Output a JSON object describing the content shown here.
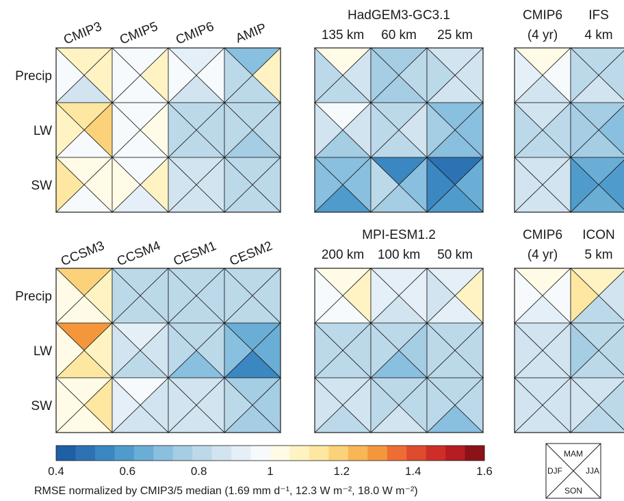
{
  "colorbar": {
    "min": 0.4,
    "max": 1.6,
    "ticks": [
      "0.4",
      "0.6",
      "0.8",
      "1",
      "1.2",
      "1.4",
      "1.6"
    ],
    "colors": [
      "#1f5fa3",
      "#2d73b3",
      "#3b87c1",
      "#4f9bcc",
      "#6aaed6",
      "#89bfdf",
      "#a5cde4",
      "#bcd9ea",
      "#d1e4f0",
      "#e4eff7",
      "#f6fafd",
      "#fffbe6",
      "#fff3c4",
      "#fde7a1",
      "#fbd27a",
      "#f8b656",
      "#f4973c",
      "#ec6e34",
      "#df4b2e",
      "#ce2e27",
      "#b51d22",
      "#8b1218"
    ],
    "caption": "RMSE normalized by CMIP3/5 median (1.69 mm d⁻¹, 12.3 W m⁻², 18.0 W m⁻²)"
  },
  "row_labels": [
    "Precip",
    "LW",
    "SW"
  ],
  "season_key": {
    "top": "MAM",
    "left": "DJF",
    "right": "JJA",
    "bottom": "SON"
  },
  "chart_data": [
    {
      "type": "heatmap",
      "columns": [
        "CMIP3",
        "CMIP5",
        "CMIP6",
        "AMIP"
      ],
      "rows": [
        "Precip",
        "LW",
        "SW"
      ],
      "season_order": [
        "MAM",
        "JJA",
        "SON",
        "DJF"
      ],
      "values": [
        [
          [
            1.08,
            1.1,
            0.85,
            0.98
          ],
          [
            0.97,
            1.1,
            0.95,
            1.0
          ],
          [
            0.9,
            0.95,
            0.88,
            0.95
          ],
          [
            0.72,
            1.1,
            0.8,
            0.82
          ]
        ],
        [
          [
            1.15,
            1.2,
            1.0,
            1.06
          ],
          [
            0.98,
            1.04,
            0.97,
            0.96
          ],
          [
            0.82,
            0.82,
            0.8,
            0.82
          ],
          [
            0.79,
            0.8,
            0.78,
            0.8
          ]
        ],
        [
          [
            1.05,
            1.03,
            0.98,
            1.12
          ],
          [
            0.96,
            1.1,
            0.92,
            1.05
          ],
          [
            0.86,
            0.86,
            0.88,
            0.86
          ],
          [
            0.82,
            0.82,
            0.82,
            0.82
          ]
        ]
      ]
    },
    {
      "type": "heatmap",
      "title": "HadGEM3-GC3.1",
      "columns": [
        "135 km",
        "60 km",
        "25 km"
      ],
      "rows": [
        "Precip",
        "LW",
        "SW"
      ],
      "season_order": [
        "MAM",
        "JJA",
        "SON",
        "DJF"
      ],
      "values": [
        [
          [
            1.05,
            0.85,
            0.8,
            0.82
          ],
          [
            0.78,
            0.82,
            0.78,
            0.76
          ],
          [
            0.85,
            0.88,
            0.84,
            0.8
          ]
        ],
        [
          [
            0.95,
            0.85,
            0.74,
            0.88
          ],
          [
            0.8,
            0.84,
            0.8,
            0.82
          ],
          [
            0.7,
            0.7,
            0.72,
            0.74
          ]
        ],
        [
          [
            0.7,
            0.68,
            0.58,
            0.7
          ],
          [
            0.52,
            0.68,
            0.74,
            0.8
          ],
          [
            0.46,
            0.66,
            0.58,
            0.56
          ]
        ]
      ]
    },
    {
      "type": "heatmap",
      "title": "MPI-ESM1.2",
      "columns": [
        "200 km",
        "100 km",
        "50 km"
      ],
      "rows": [
        "Precip",
        "LW",
        "SW"
      ],
      "season_order": [
        "MAM",
        "JJA",
        "SON",
        "DJF"
      ],
      "values": [
        [
          [
            1.05,
            1.1,
            0.95,
            0.98
          ],
          [
            0.92,
            0.9,
            0.84,
            0.94
          ],
          [
            0.9,
            1.08,
            0.92,
            0.88
          ]
        ],
        [
          [
            0.82,
            0.8,
            0.8,
            0.82
          ],
          [
            0.8,
            0.78,
            0.72,
            0.8
          ],
          [
            0.8,
            0.82,
            0.8,
            0.82
          ]
        ],
        [
          [
            0.84,
            0.86,
            0.82,
            0.84
          ],
          [
            0.82,
            0.8,
            0.84,
            0.82
          ],
          [
            0.82,
            0.8,
            0.7,
            0.82
          ]
        ]
      ]
    },
    {
      "type": "heatmap",
      "columns": [
        "CCSM3",
        "CCSM4",
        "CESM1",
        "CESM2"
      ],
      "rows": [
        "Precip",
        "LW",
        "SW"
      ],
      "season_order": [
        "MAM",
        "JJA",
        "SON",
        "DJF"
      ],
      "values": [
        [
          [
            1.2,
            1.08,
            1.04,
            1.03
          ],
          [
            0.8,
            0.82,
            0.8,
            0.82
          ],
          [
            0.82,
            0.82,
            0.8,
            0.82
          ],
          [
            0.8,
            0.8,
            0.82,
            0.8
          ]
        ],
        [
          [
            1.32,
            1.1,
            1.12,
            1.03
          ],
          [
            0.92,
            0.84,
            0.8,
            0.88
          ],
          [
            0.82,
            0.8,
            0.7,
            0.82
          ],
          [
            0.66,
            0.66,
            0.54,
            0.7
          ]
        ],
        [
          [
            1.05,
            1.15,
            1.03,
            1.05
          ],
          [
            0.95,
            0.86,
            0.88,
            0.92
          ],
          [
            0.86,
            0.84,
            0.84,
            0.88
          ],
          [
            0.74,
            0.76,
            0.74,
            0.82
          ]
        ]
      ]
    },
    {
      "type": "heatmap",
      "title": "CMIP6 (4 yr) / IFS 4 km",
      "columns": [
        "CMIP6\n(4 yr)",
        "IFS\n4 km"
      ],
      "rows": [
        "Precip",
        "LW",
        "SW"
      ],
      "season_order": [
        "MAM",
        "JJA",
        "SON",
        "DJF"
      ],
      "values": [
        [
          [
            1.05,
            1.0,
            0.86,
            0.92
          ],
          [
            0.82,
            0.8,
            0.84,
            0.82
          ]
        ],
        [
          [
            0.88,
            0.8,
            0.8,
            0.82
          ],
          [
            0.76,
            0.68,
            0.78,
            0.78
          ]
        ],
        [
          [
            0.86,
            0.84,
            0.86,
            0.86
          ],
          [
            0.62,
            0.58,
            0.62,
            0.6
          ]
        ]
      ]
    },
    {
      "type": "heatmap",
      "title": "CMIP6 (4 yr) / ICON 5 km",
      "columns": [
        "CMIP6\n(4 yr)",
        "ICON\n5 km"
      ],
      "rows": [
        "Precip",
        "LW",
        "SW"
      ],
      "season_order": [
        "MAM",
        "JJA",
        "SON",
        "DJF"
      ],
      "values": [
        [
          [
            1.02,
            1.0,
            0.9,
            0.95
          ],
          [
            1.1,
            0.86,
            0.82,
            1.15
          ]
        ],
        [
          [
            0.86,
            0.84,
            0.84,
            0.88
          ],
          [
            0.82,
            0.82,
            0.8,
            0.78
          ]
        ],
        [
          [
            0.86,
            0.86,
            0.86,
            0.88
          ],
          [
            0.84,
            0.82,
            0.82,
            0.84
          ]
        ]
      ]
    }
  ],
  "panels": [
    {
      "id": "cmip-generations",
      "headers": [
        {
          "text": "CMIP3"
        },
        {
          "text": "CMIP5"
        },
        {
          "text": "CMIP6"
        },
        {
          "text": "AMIP"
        }
      ]
    },
    {
      "id": "hadgem",
      "title": "HadGEM3-GC3.1",
      "headers": [
        {
          "text": "135 km"
        },
        {
          "text": "60 km"
        },
        {
          "text": "25 km"
        }
      ]
    },
    {
      "id": "mpi",
      "title": "MPI-ESM1.2",
      "headers": [
        {
          "text": "200 km"
        },
        {
          "text": "100 km"
        },
        {
          "text": "50 km"
        }
      ]
    },
    {
      "id": "ncar-generations",
      "headers": [
        {
          "text": "CCSM3"
        },
        {
          "text": "CCSM4"
        },
        {
          "text": "CESM1"
        },
        {
          "text": "CESM2"
        }
      ]
    },
    {
      "id": "ifs",
      "headers": [
        {
          "line1": "CMIP6",
          "line2": "(4 yr)"
        },
        {
          "line1": "IFS",
          "line2": "4 km"
        }
      ]
    },
    {
      "id": "icon",
      "headers": [
        {
          "line1": "CMIP6",
          "line2": "(4 yr)"
        },
        {
          "line1": "ICON",
          "line2": "5 km"
        }
      ]
    }
  ]
}
